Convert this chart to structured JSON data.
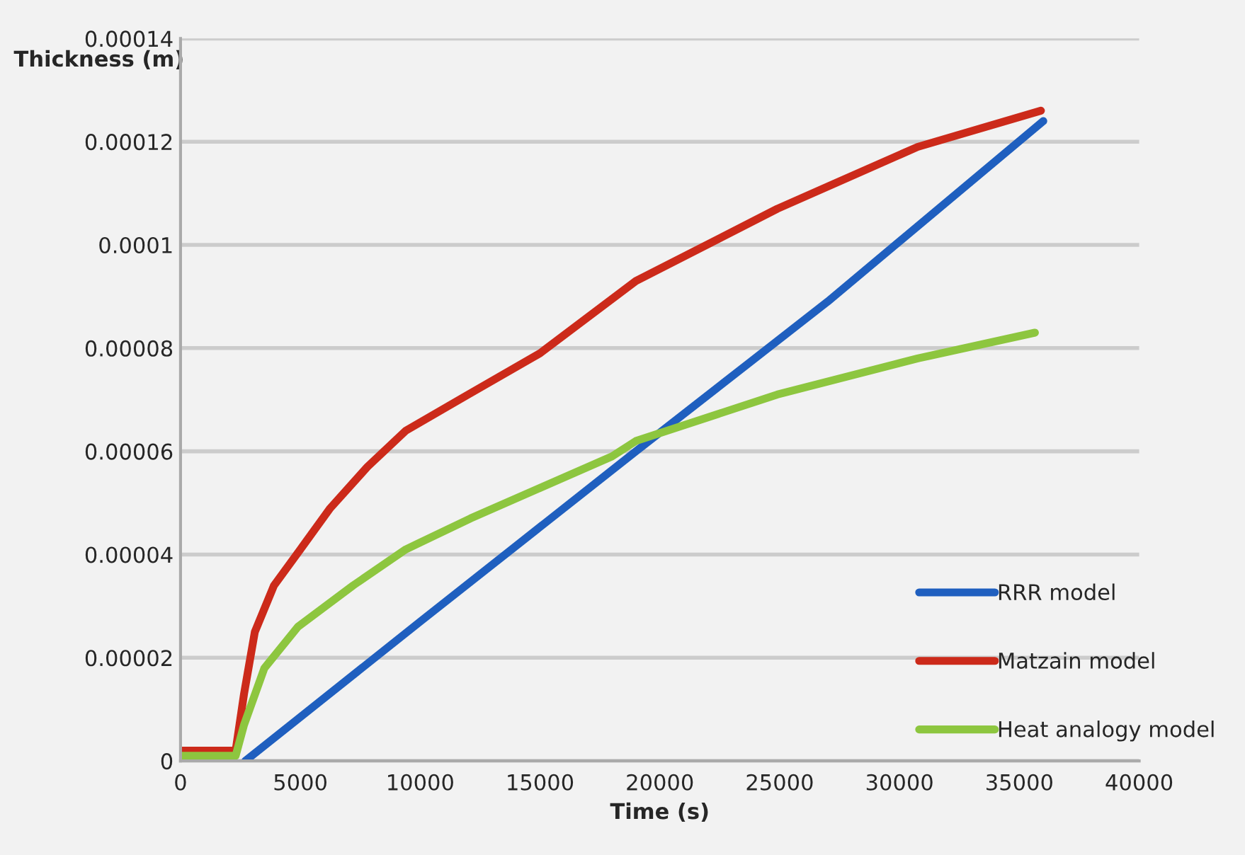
{
  "chart_data": {
    "type": "line",
    "xlabel": "Time (s)",
    "ylabel": "Thickness (m)",
    "xlim": [
      0,
      40000
    ],
    "xticks": [
      0,
      5000,
      10000,
      15000,
      20000,
      25000,
      30000,
      35000,
      40000
    ],
    "ylim": [
      0,
      0.00014
    ],
    "yticks": [
      {
        "value": 0,
        "label": "0"
      },
      {
        "value": 2e-05,
        "label": "0.00002"
      },
      {
        "value": 4e-05,
        "label": "0.00004"
      },
      {
        "value": 6e-05,
        "label": "0.00006"
      },
      {
        "value": 8e-05,
        "label": "0.00008"
      },
      {
        "value": 0.0001,
        "label": "0.0001"
      },
      {
        "value": 0.00012,
        "label": "0.00012"
      },
      {
        "value": 0.00014,
        "label": "0.00014"
      }
    ],
    "grid": "y",
    "legend": "lower right",
    "marker": "none",
    "line_style": "solid",
    "series": [
      {
        "name": "RRR model",
        "color": "#1f5fbf",
        "x": [
          2700,
          10000,
          19000,
          27000,
          36000
        ],
        "values": [
          0,
          2.7e-05,
          6e-05,
          8.9e-05,
          0.000124
        ]
      },
      {
        "name": "Matzain model",
        "color": "#cc2a1a",
        "x": [
          0,
          700,
          2300,
          2650,
          3100,
          3900,
          5000,
          6250,
          7800,
          9400,
          12000,
          15000,
          19000,
          24900,
          30760,
          35900
        ],
        "values": [
          2e-06,
          2e-06,
          2e-06,
          1.3e-05,
          2.5e-05,
          3.4e-05,
          4.1e-05,
          4.9e-05,
          5.7e-05,
          6.4e-05,
          7.1e-05,
          7.9e-05,
          9.3e-05,
          0.000107,
          0.000119,
          0.000126
        ]
      },
      {
        "name": "Heat analogy model",
        "color": "#8dc63f",
        "x": [
          0,
          2300,
          2650,
          3500,
          4900,
          7200,
          9400,
          12100,
          15050,
          18000,
          19000,
          24900,
          30760,
          35650
        ],
        "values": [
          1e-06,
          1e-06,
          7e-06,
          1.8e-05,
          2.6e-05,
          3.4e-05,
          4.1e-05,
          4.7e-05,
          5.3e-05,
          5.9e-05,
          6.2e-05,
          7.1e-05,
          7.8e-05,
          8.3e-05
        ]
      }
    ]
  }
}
